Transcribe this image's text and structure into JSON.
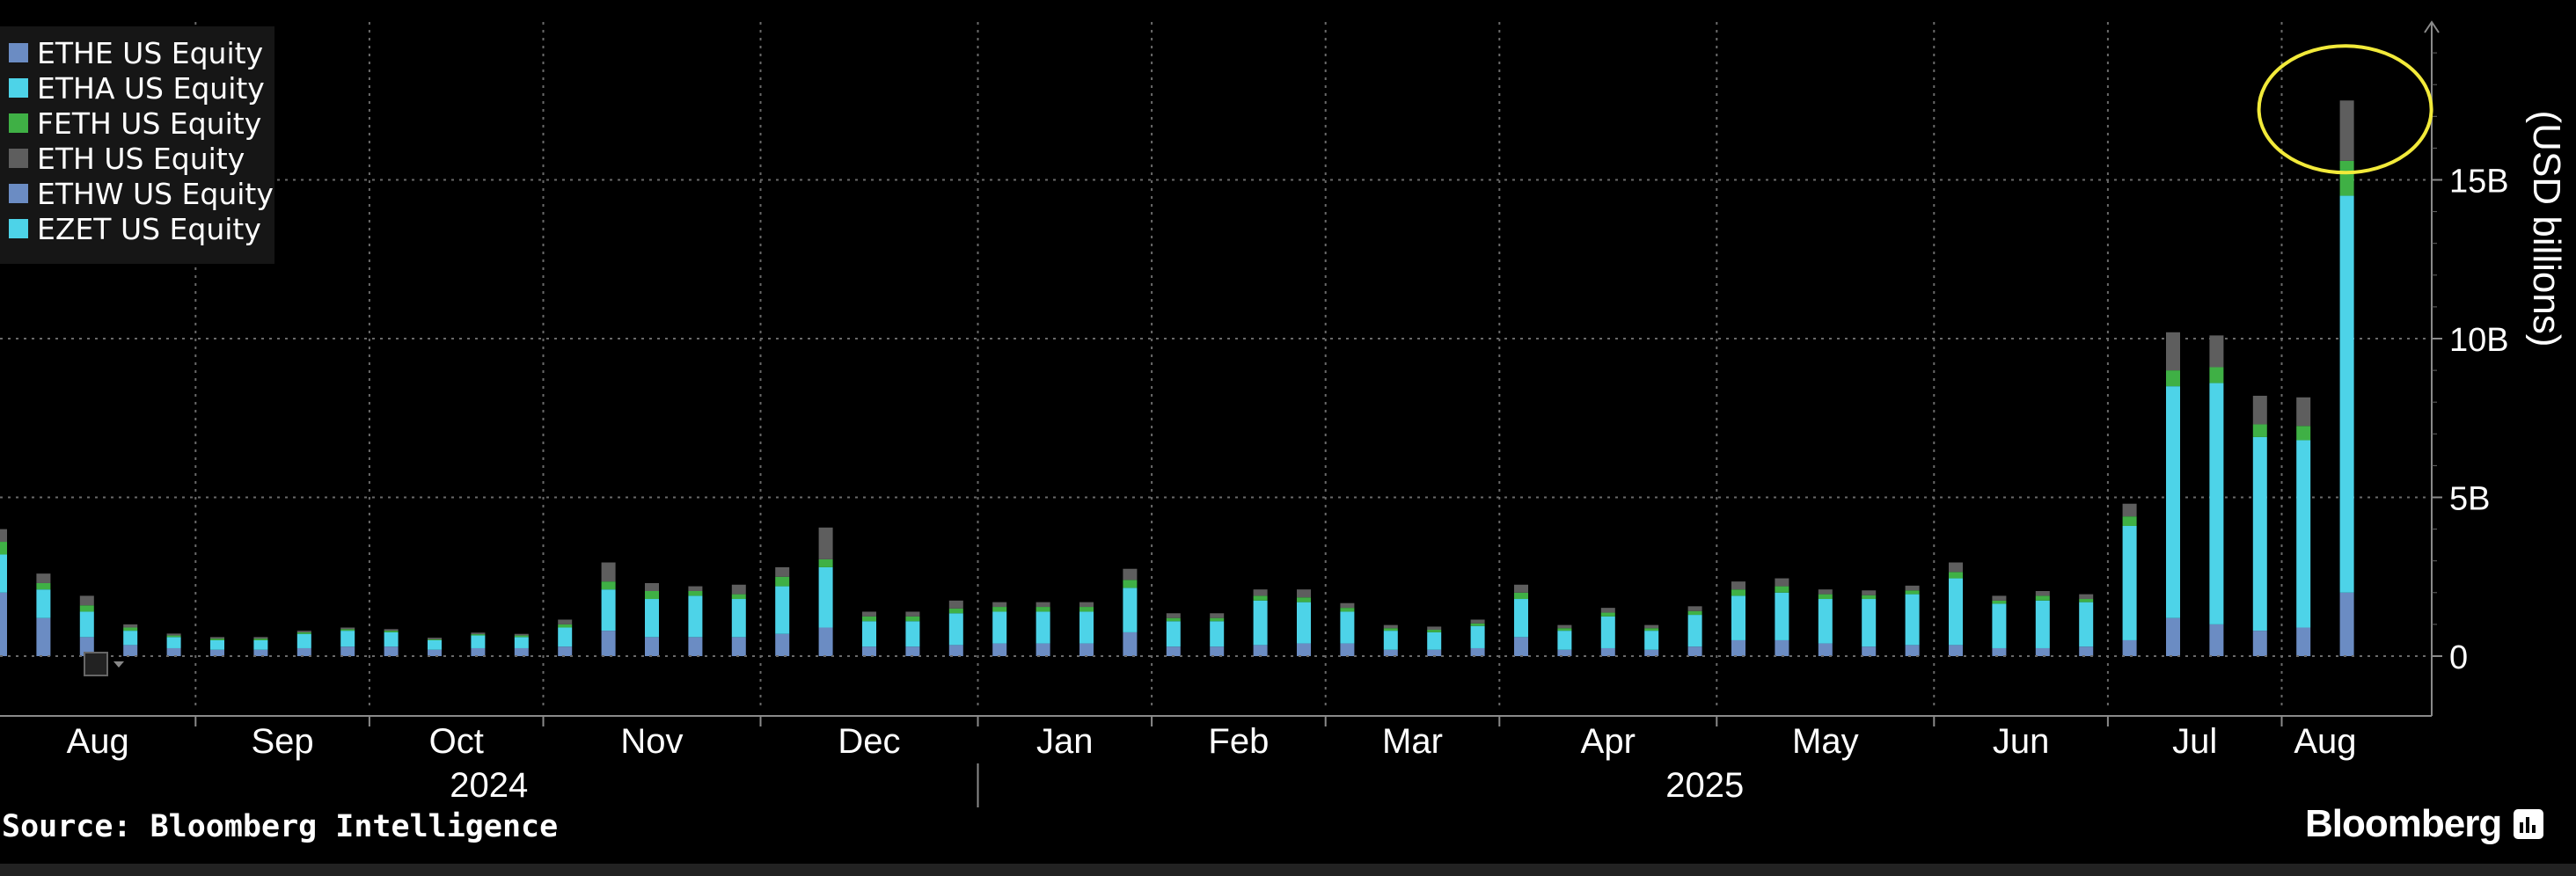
{
  "chart_data": {
    "type": "bar",
    "stacked": true,
    "title": "",
    "ylabel": "(USD billions)",
    "ylim": [
      0,
      20
    ],
    "yticks": [
      {
        "value": 0,
        "label": "0"
      },
      {
        "value": 5,
        "label": "5B"
      },
      {
        "value": 10,
        "label": "10B"
      },
      {
        "value": 15,
        "label": "15B"
      }
    ],
    "grid": true,
    "legend_position": "top-left",
    "months": [
      {
        "label": "Aug",
        "start_index": 0
      },
      {
        "label": "Sep",
        "start_index": 5
      },
      {
        "label": "Oct",
        "start_index": 9
      },
      {
        "label": "Nov",
        "start_index": 13
      },
      {
        "label": "Dec",
        "start_index": 18
      },
      {
        "label": "Jan",
        "start_index": 23
      },
      {
        "label": "Feb",
        "start_index": 27
      },
      {
        "label": "Mar",
        "start_index": 31
      },
      {
        "label": "Apr",
        "start_index": 35
      },
      {
        "label": "May",
        "start_index": 40
      },
      {
        "label": "Jun",
        "start_index": 45
      },
      {
        "label": "Jul",
        "start_index": 49
      },
      {
        "label": "Aug",
        "start_index": 53
      }
    ],
    "years": [
      {
        "label": "2024",
        "start_index": 0
      },
      {
        "label": "2025",
        "start_index": 23
      }
    ],
    "series": [
      {
        "name": "ETHE US Equity",
        "color": "#6B8CC3",
        "values": [
          2.0,
          1.2,
          0.6,
          0.35,
          0.25,
          0.2,
          0.2,
          0.25,
          0.3,
          0.3,
          0.2,
          0.25,
          0.25,
          0.3,
          0.8,
          0.6,
          0.6,
          0.6,
          0.7,
          0.9,
          0.3,
          0.3,
          0.35,
          0.4,
          0.4,
          0.4,
          0.75,
          0.3,
          0.3,
          0.35,
          0.4,
          0.4,
          0.2,
          0.2,
          0.25,
          0.6,
          0.2,
          0.25,
          0.2,
          0.3,
          0.5,
          0.5,
          0.4,
          0.3,
          0.35,
          0.35,
          0.25,
          0.25,
          0.3,
          0.5,
          1.2,
          1.0,
          0.8,
          0.9,
          2.0
        ]
      },
      {
        "name": "ETHA US Equity",
        "color": "#4DD3E8",
        "values": [
          1.2,
          0.9,
          0.8,
          0.45,
          0.35,
          0.3,
          0.3,
          0.45,
          0.5,
          0.45,
          0.3,
          0.4,
          0.35,
          0.6,
          1.3,
          1.2,
          1.3,
          1.2,
          1.5,
          1.9,
          0.8,
          0.8,
          1.0,
          1.0,
          1.0,
          1.0,
          1.4,
          0.8,
          0.8,
          1.4,
          1.3,
          1.0,
          0.6,
          0.55,
          0.7,
          1.2,
          0.6,
          1.0,
          0.6,
          1.0,
          1.4,
          1.5,
          1.4,
          1.5,
          1.6,
          2.1,
          1.4,
          1.5,
          1.4,
          3.6,
          7.3,
          7.6,
          6.1,
          5.9,
          12.5
        ]
      },
      {
        "name": "FETH US Equity",
        "color": "#3FB045",
        "values": [
          0.4,
          0.2,
          0.2,
          0.1,
          0.05,
          0.05,
          0.05,
          0.05,
          0.05,
          0.05,
          0.03,
          0.04,
          0.05,
          0.1,
          0.25,
          0.25,
          0.15,
          0.15,
          0.3,
          0.25,
          0.15,
          0.15,
          0.15,
          0.15,
          0.15,
          0.15,
          0.25,
          0.1,
          0.1,
          0.15,
          0.15,
          0.12,
          0.08,
          0.08,
          0.08,
          0.2,
          0.08,
          0.12,
          0.08,
          0.12,
          0.2,
          0.2,
          0.15,
          0.12,
          0.12,
          0.2,
          0.1,
          0.15,
          0.1,
          0.3,
          0.5,
          0.5,
          0.4,
          0.45,
          1.1
        ]
      },
      {
        "name": "ETH US Equity",
        "color": "#5E5E5E",
        "values": [
          0.4,
          0.3,
          0.3,
          0.1,
          0.06,
          0.05,
          0.05,
          0.05,
          0.05,
          0.05,
          0.05,
          0.05,
          0.05,
          0.15,
          0.6,
          0.25,
          0.15,
          0.3,
          0.3,
          1.0,
          0.15,
          0.15,
          0.25,
          0.15,
          0.15,
          0.15,
          0.35,
          0.15,
          0.15,
          0.2,
          0.25,
          0.15,
          0.1,
          0.1,
          0.12,
          0.25,
          0.1,
          0.15,
          0.1,
          0.15,
          0.25,
          0.25,
          0.15,
          0.15,
          0.15,
          0.3,
          0.15,
          0.15,
          0.15,
          0.4,
          1.2,
          1.0,
          0.9,
          0.9,
          1.9
        ]
      },
      {
        "name": "ETHW US Equity",
        "color": "#6B8CC3",
        "values": []
      },
      {
        "name": "EZET US Equity",
        "color": "#4DD3E8",
        "values": []
      }
    ]
  },
  "legend": {
    "items": [
      {
        "label": "ETHE US Equity",
        "color": "#6B8CC3"
      },
      {
        "label": "ETHA US Equity",
        "color": "#4DD3E8"
      },
      {
        "label": "FETH US Equity",
        "color": "#3FB045"
      },
      {
        "label": "ETH US Equity",
        "color": "#5E5E5E"
      },
      {
        "label": "ETHW US Equity",
        "color": "#6B8CC3"
      },
      {
        "label": "EZET US Equity",
        "color": "#4DD3E8"
      }
    ]
  },
  "annotation": {
    "shape": "ellipse",
    "color": "#F2EA3A",
    "highlight_index": 54
  },
  "footer": {
    "source": "Source: Bloomberg Intelligence",
    "brand": "Bloomberg"
  },
  "icons": {
    "chart_tool": "chart-type-icon",
    "brand": "bloomberg-logo-icon"
  }
}
